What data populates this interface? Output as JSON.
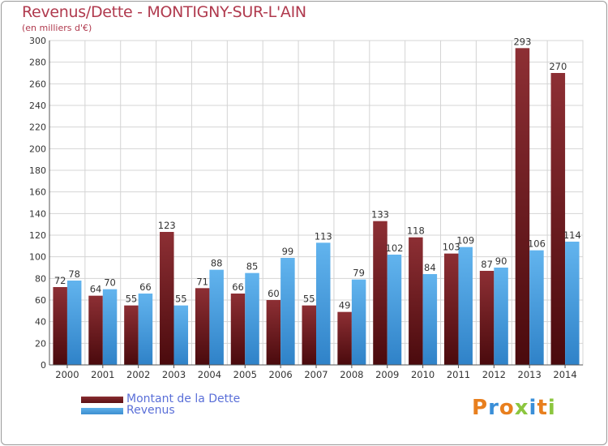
{
  "chart_data": {
    "type": "bar",
    "title": "Revenus/Dette - MONTIGNY-SUR-L'AIN",
    "subtitle": "(en milliers d'€)",
    "categories": [
      "2000",
      "2001",
      "2002",
      "2003",
      "2004",
      "2005",
      "2006",
      "2007",
      "2008",
      "2009",
      "2010",
      "2011",
      "2012",
      "2013",
      "2014"
    ],
    "series": [
      {
        "name": "Montant de la Dette",
        "color": "#7a2226",
        "values": [
          72,
          64,
          55,
          123,
          71,
          66,
          60,
          55,
          49,
          133,
          118,
          103,
          87,
          293,
          270
        ]
      },
      {
        "name": "Revenus",
        "color": "#4aa0e0",
        "values": [
          78,
          70,
          66,
          55,
          88,
          85,
          99,
          113,
          79,
          102,
          84,
          109,
          90,
          106,
          114
        ]
      }
    ],
    "ylim": [
      0,
      300
    ],
    "yticks": [
      0,
      20,
      40,
      60,
      80,
      100,
      120,
      140,
      160,
      180,
      200,
      220,
      240,
      260,
      280,
      300
    ],
    "grid": true,
    "legend_position": "bottom-left"
  },
  "logo": {
    "letters": [
      "P",
      "r",
      "o",
      "x",
      "i",
      "t",
      "i"
    ],
    "colors": [
      "#e87f1e",
      "#3a8fd8",
      "#e87f1e",
      "#8cc63f",
      "#3a8fd8",
      "#e87f1e",
      "#8cc63f"
    ]
  }
}
